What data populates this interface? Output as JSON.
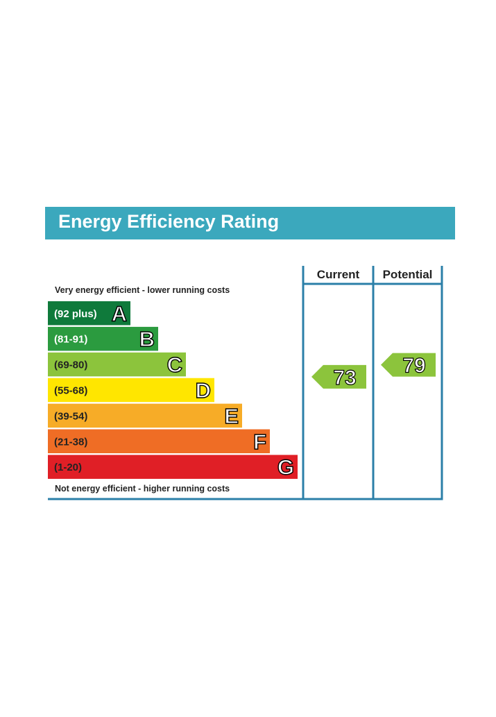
{
  "title": "Energy Efficiency Rating",
  "chart_data": {
    "type": "bar",
    "title": "Energy Efficiency Rating",
    "top_caption": "Very energy efficient - lower running costs",
    "bottom_caption": "Not energy efficient - higher running costs",
    "columns": [
      "Current",
      "Potential"
    ],
    "bands": [
      {
        "letter": "A",
        "range": "(92 plus)",
        "color": "#0f7a3b",
        "text_color": "#ffffff"
      },
      {
        "letter": "B",
        "range": "(81-91)",
        "color": "#2b9b3f",
        "text_color": "#ffffff"
      },
      {
        "letter": "C",
        "range": "(69-80)",
        "color": "#8cc43c",
        "text_color": "#222222"
      },
      {
        "letter": "D",
        "range": "(55-68)",
        "color": "#ffe600",
        "text_color": "#222222"
      },
      {
        "letter": "E",
        "range": "(39-54)",
        "color": "#f7ac27",
        "text_color": "#222222"
      },
      {
        "letter": "F",
        "range": "(21-38)",
        "color": "#ef6d25",
        "text_color": "#222222"
      },
      {
        "letter": "G",
        "range": "(1-20)",
        "color": "#e01f26",
        "text_color": "#222222"
      }
    ],
    "current": {
      "value": 73,
      "band": "C",
      "color": "#8cc43c"
    },
    "potential": {
      "value": 79,
      "band": "C",
      "color": "#8cc43c"
    }
  },
  "colors": {
    "title_bar": "#3ba8bd",
    "frame": "#2b7fa8"
  }
}
